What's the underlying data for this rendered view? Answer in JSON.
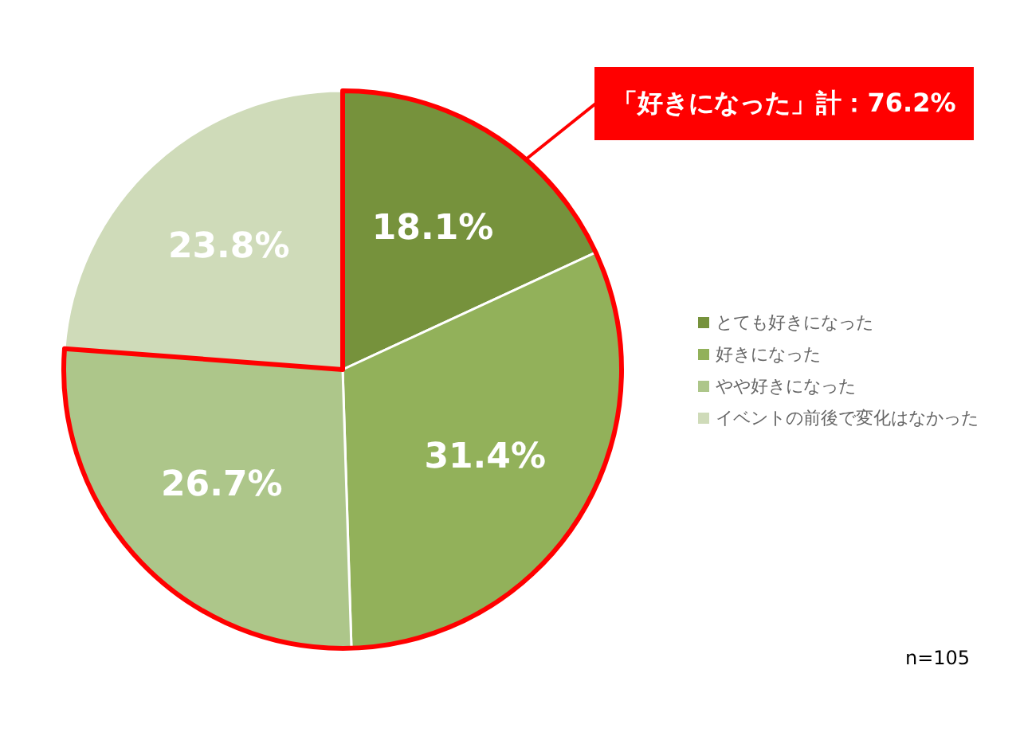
{
  "chart_data": {
    "type": "pie",
    "categories": [
      "とても好きになった",
      "好きになった",
      "やや好きになった",
      "イベントの前後で変化はなかった"
    ],
    "values": [
      18.1,
      31.4,
      26.7,
      23.8
    ],
    "colors": [
      "#76923c",
      "#92b15a",
      "#adc68a",
      "#cfdbb9"
    ],
    "value_labels": [
      "18.1%",
      "31.4%",
      "26.7%",
      "23.8%"
    ],
    "legend": "right",
    "annotations": [
      "「好きになった」計：76.2%",
      "n=105"
    ]
  }
}
